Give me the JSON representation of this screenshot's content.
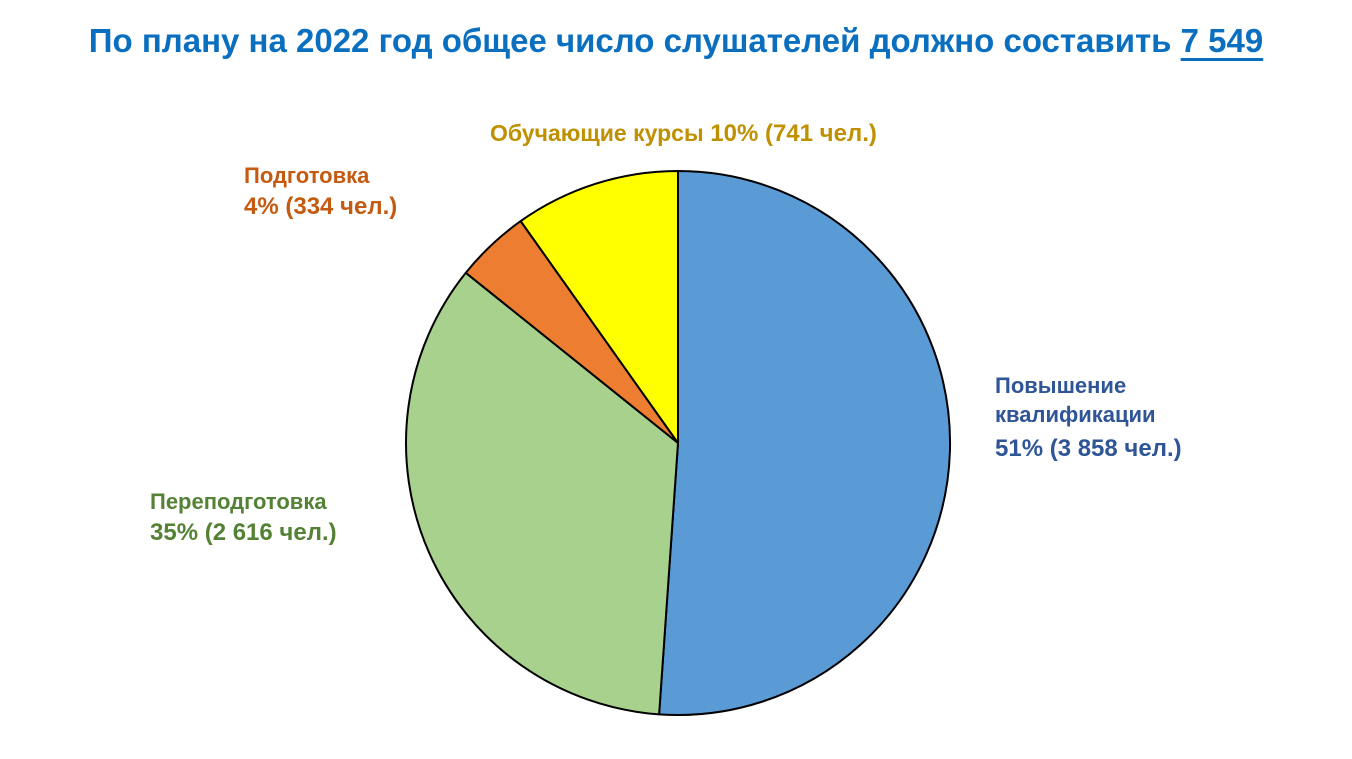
{
  "title": {
    "text": "По плану на 2022 год общее число слушателей должно составить",
    "total": "7 549"
  },
  "colors": {
    "title": "#0b6fc0",
    "outline": "#000000"
  },
  "chart_data": {
    "type": "pie",
    "total": 7549,
    "start_angle_deg": 0,
    "direction": "clockwise",
    "slices": [
      {
        "name": "Повышение квалификации",
        "name_line1": "Повышение",
        "name_line2": "квалификации",
        "percent_label": "51% (3 858 чел.)",
        "percent": 51,
        "value": 3858,
        "color": "#5b9bd5",
        "label_color": "#2f5597"
      },
      {
        "name": "Переподготовка",
        "percent_label": "35% (2 616 чел.)",
        "percent": 35,
        "value": 2616,
        "color": "#a9d18e",
        "label_color": "#548235"
      },
      {
        "name": "Подготовка",
        "percent_label": "4% (334 чел.)",
        "percent": 4,
        "value": 334,
        "color": "#ed7d31",
        "label_color": "#c55a11"
      },
      {
        "name": "Обучающие курсы",
        "percent_label": "10% (741 чел.)",
        "percent": 10,
        "value": 741,
        "color": "#ffff00",
        "label_color": "#bf9000"
      }
    ]
  }
}
